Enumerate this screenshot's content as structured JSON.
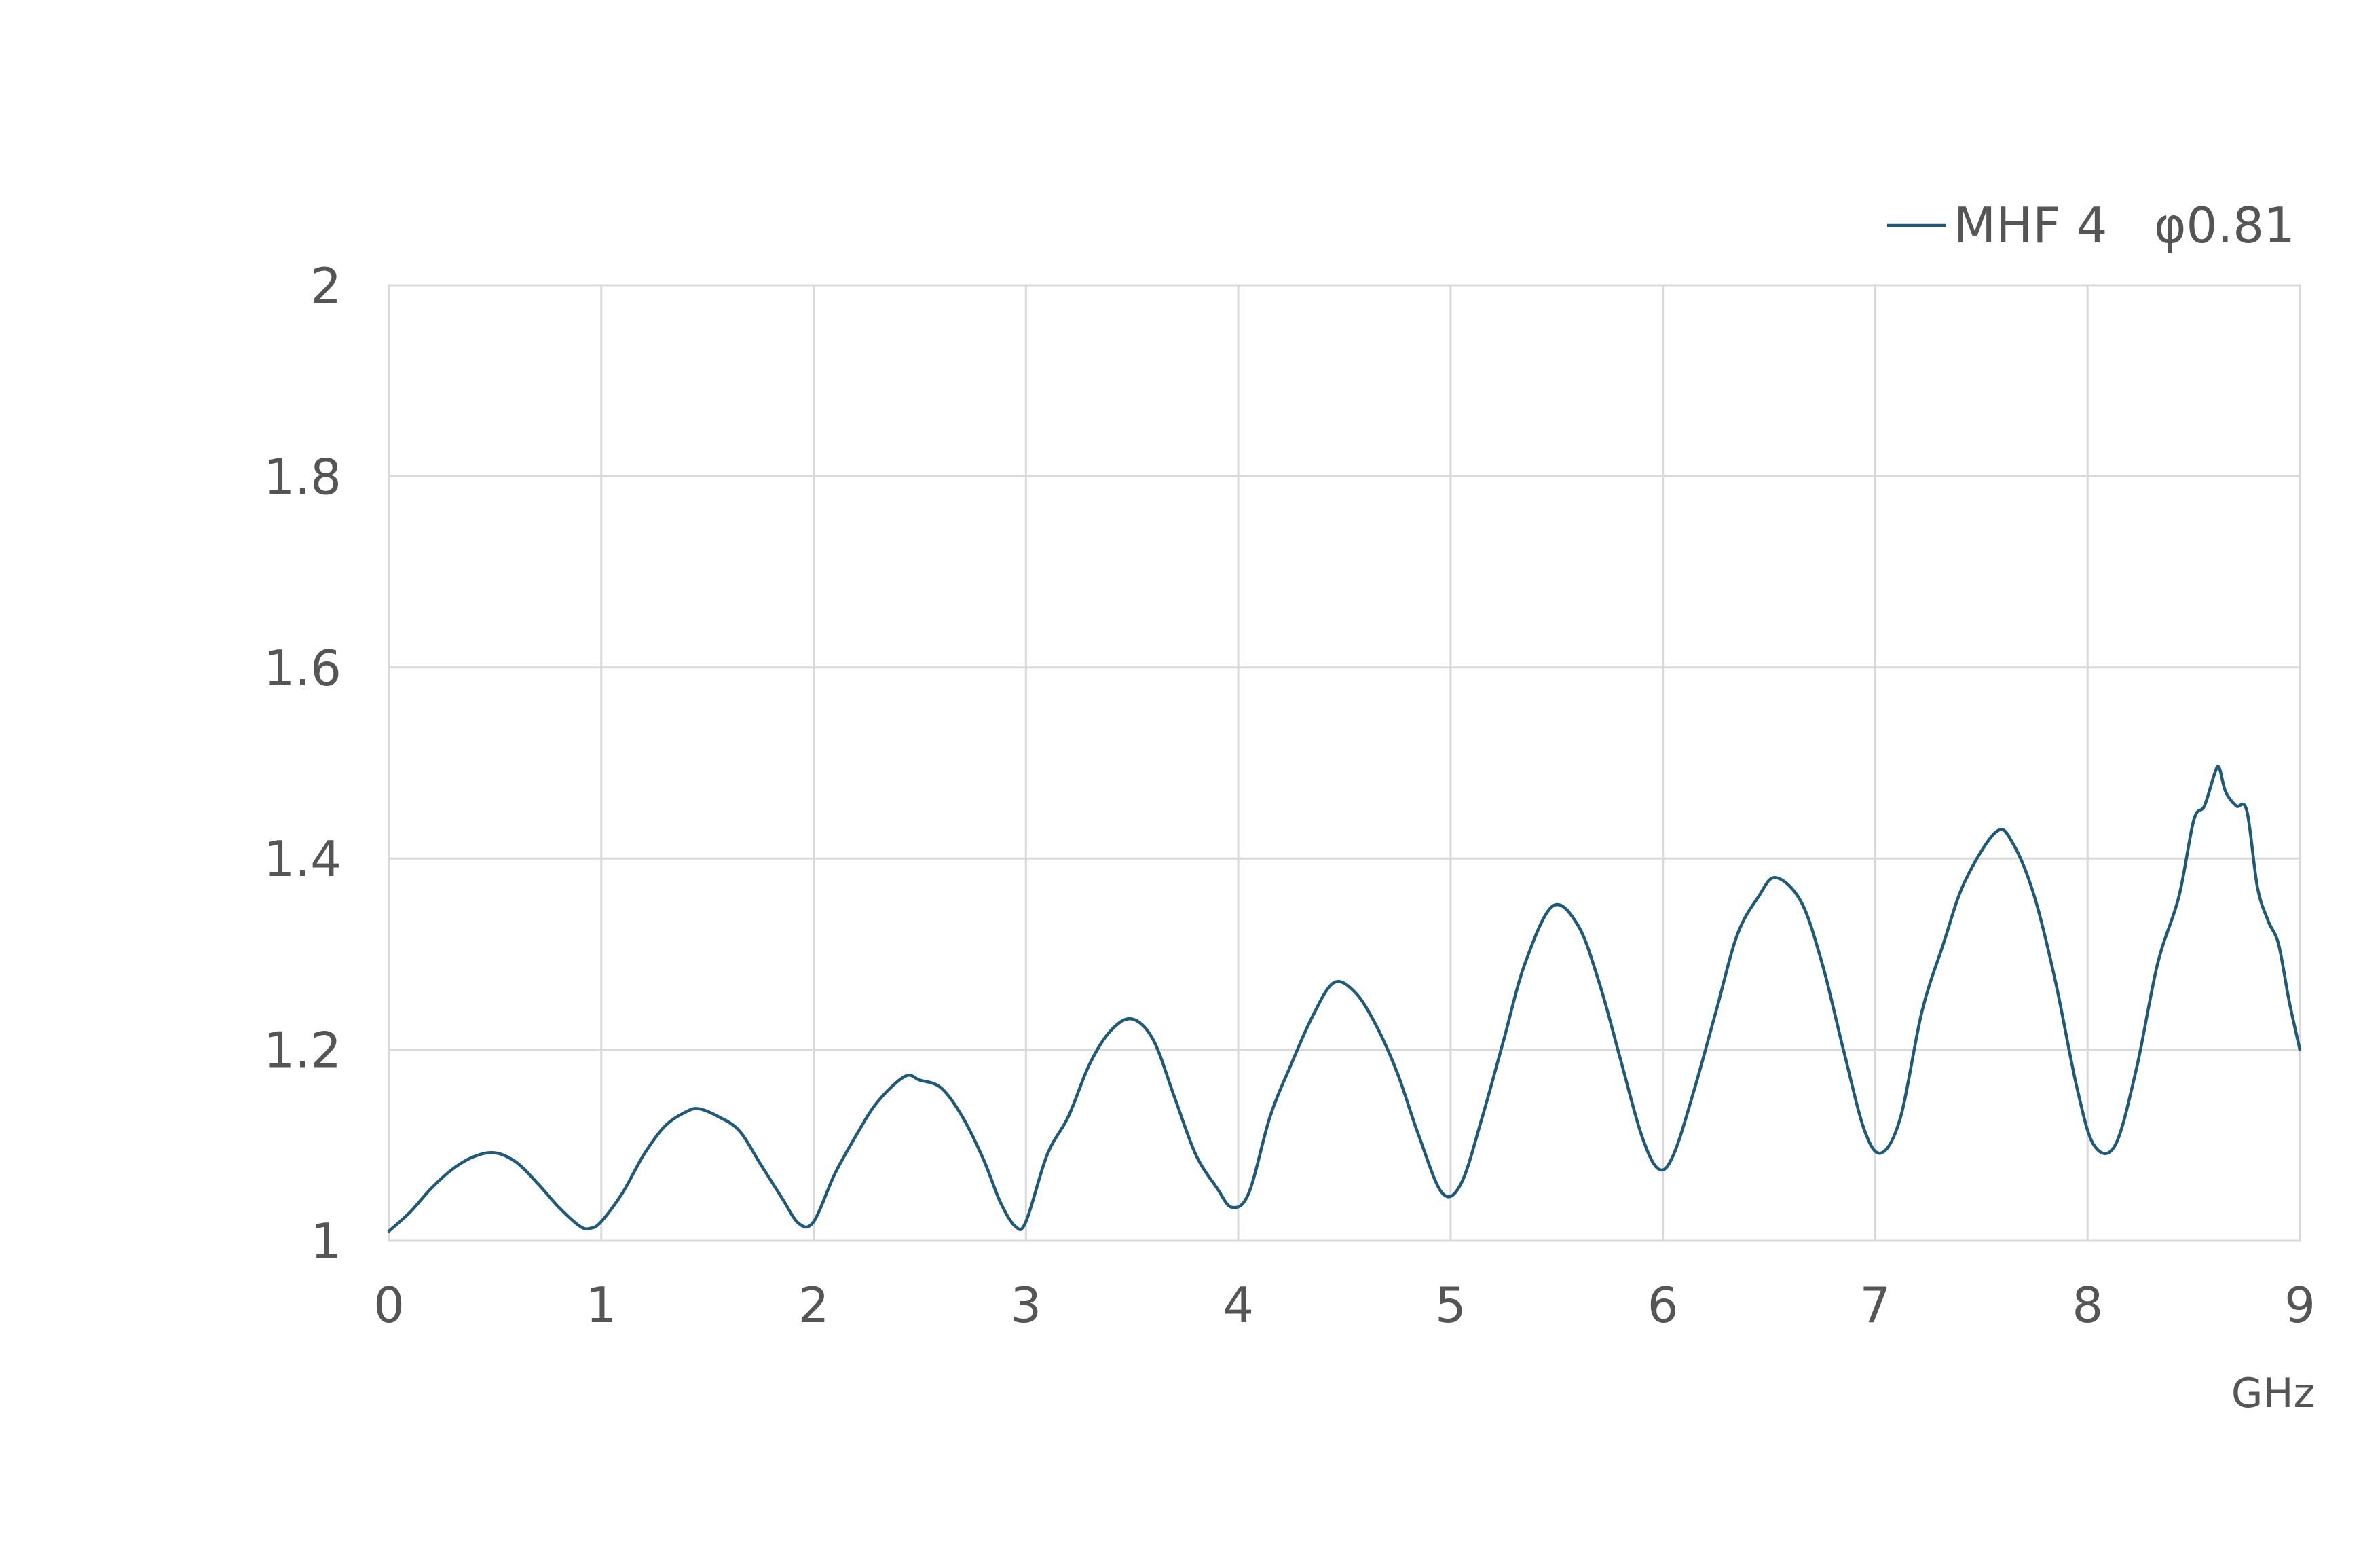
{
  "chart_data": {
    "type": "line",
    "title": "",
    "xlabel": "GHz",
    "ylabel": "",
    "xlim": [
      0,
      9
    ],
    "ylim": [
      1,
      2
    ],
    "x_ticks": [
      0,
      1,
      2,
      3,
      4,
      5,
      6,
      7,
      8,
      9
    ],
    "y_ticks": [
      1,
      1.2,
      1.4,
      1.6,
      1.8,
      2
    ],
    "x_tick_labels": [
      "0",
      "1",
      "2",
      "3",
      "4",
      "5",
      "6",
      "7",
      "8",
      "9"
    ],
    "y_tick_labels": [
      "1",
      "1.2",
      "1.4",
      "1.6",
      "1.8",
      "2"
    ],
    "grid": true,
    "legend_position": "top-right",
    "series": [
      {
        "name": "MHF 4   φ0.81",
        "color": "#1f5a7a",
        "x": [
          0.0,
          0.1,
          0.2,
          0.3,
          0.4,
          0.5,
          0.6,
          0.7,
          0.8,
          0.9,
          0.95,
          1.0,
          1.1,
          1.2,
          1.3,
          1.4,
          1.46,
          1.55,
          1.65,
          1.75,
          1.85,
          1.93,
          2.0,
          2.1,
          2.2,
          2.3,
          2.43,
          2.5,
          2.6,
          2.7,
          2.8,
          2.88,
          2.95,
          3.0,
          3.1,
          3.2,
          3.3,
          3.4,
          3.5,
          3.6,
          3.7,
          3.8,
          3.9,
          3.97,
          4.05,
          4.15,
          4.25,
          4.35,
          4.45,
          4.55,
          4.65,
          4.75,
          4.85,
          4.96,
          5.05,
          5.15,
          5.25,
          5.35,
          5.48,
          5.6,
          5.7,
          5.8,
          5.9,
          5.98,
          6.05,
          6.15,
          6.25,
          6.35,
          6.45,
          6.53,
          6.65,
          6.75,
          6.85,
          6.95,
          7.03,
          7.12,
          7.22,
          7.32,
          7.42,
          7.57,
          7.65,
          7.75,
          7.85,
          7.95,
          8.03,
          8.13,
          8.23,
          8.33,
          8.43,
          8.5,
          8.55,
          8.6,
          8.62,
          8.65,
          8.7,
          8.75,
          8.8,
          8.85,
          8.9,
          8.95,
          9.0
        ],
        "values": [
          1.01,
          1.03,
          1.055,
          1.075,
          1.088,
          1.092,
          1.082,
          1.06,
          1.035,
          1.015,
          1.013,
          1.02,
          1.05,
          1.09,
          1.12,
          1.135,
          1.138,
          1.13,
          1.115,
          1.08,
          1.045,
          1.018,
          1.02,
          1.07,
          1.11,
          1.145,
          1.172,
          1.168,
          1.16,
          1.13,
          1.085,
          1.04,
          1.015,
          1.02,
          1.09,
          1.13,
          1.185,
          1.22,
          1.232,
          1.21,
          1.15,
          1.09,
          1.055,
          1.035,
          1.05,
          1.13,
          1.185,
          1.235,
          1.27,
          1.26,
          1.225,
          1.175,
          1.11,
          1.05,
          1.06,
          1.13,
          1.21,
          1.29,
          1.35,
          1.33,
          1.27,
          1.19,
          1.11,
          1.075,
          1.09,
          1.16,
          1.24,
          1.32,
          1.36,
          1.38,
          1.355,
          1.29,
          1.2,
          1.115,
          1.092,
          1.13,
          1.24,
          1.31,
          1.375,
          1.428,
          1.415,
          1.36,
          1.27,
          1.16,
          1.1,
          1.1,
          1.18,
          1.29,
          1.36,
          1.44,
          1.455,
          1.49,
          1.495,
          1.47,
          1.455,
          1.45,
          1.37,
          1.335,
          1.31,
          1.25,
          1.2
        ]
      }
    ]
  }
}
